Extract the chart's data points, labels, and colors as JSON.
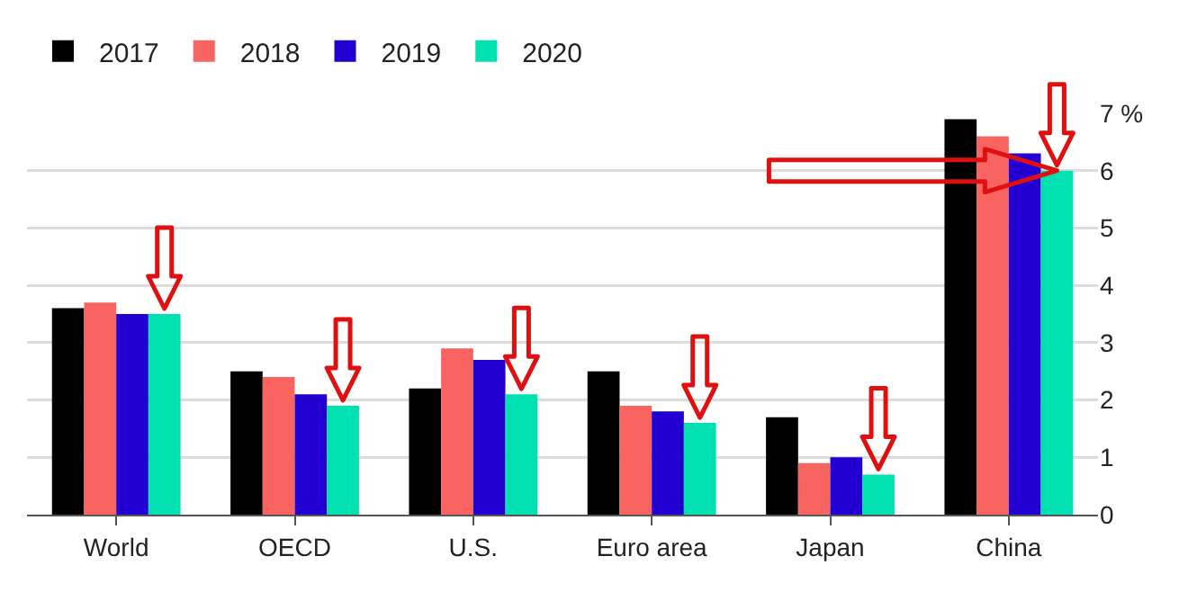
{
  "chart_data": {
    "type": "bar",
    "categories": [
      "World",
      "OECD",
      "U.S.",
      "Euro area",
      "Japan",
      "China"
    ],
    "series": [
      {
        "name": "2017",
        "color": "#000000",
        "values": [
          3.6,
          2.5,
          2.2,
          2.5,
          1.7,
          6.9
        ]
      },
      {
        "name": "2018",
        "color": "#f96461",
        "values": [
          3.7,
          2.4,
          2.9,
          1.9,
          0.9,
          6.6
        ]
      },
      {
        "name": "2019",
        "color": "#2200d2",
        "values": [
          3.5,
          2.1,
          2.7,
          1.8,
          1.0,
          6.3
        ]
      },
      {
        "name": "2020",
        "color": "#00e0b0",
        "values": [
          3.5,
          1.9,
          2.1,
          1.6,
          0.7,
          6.0
        ]
      }
    ],
    "ylim": [
      0,
      7
    ],
    "yticks": [
      0,
      1,
      2,
      3,
      4,
      5,
      6,
      {
        "value": 7,
        "label": "7 %"
      }
    ],
    "grid": "y",
    "legend": "top left"
  }
}
